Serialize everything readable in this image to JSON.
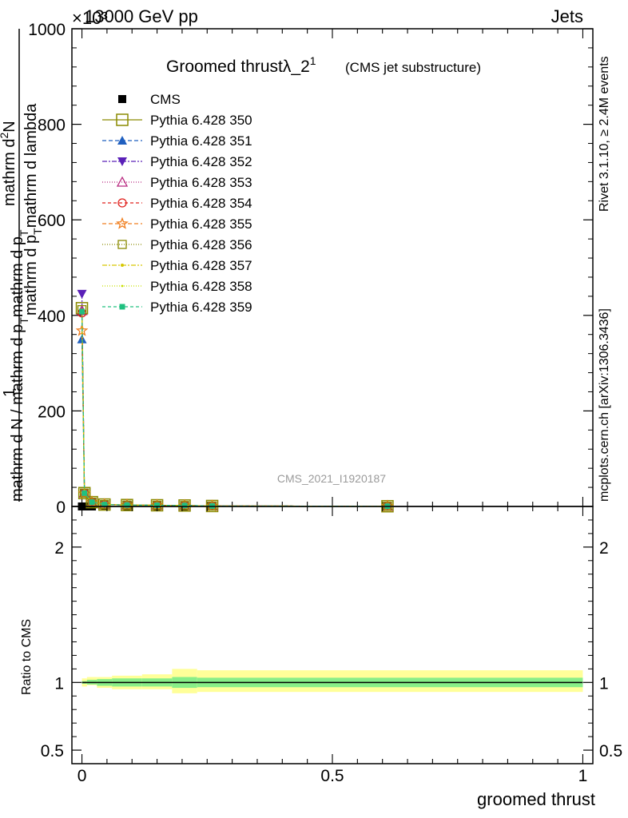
{
  "header": {
    "left": "13000 GeV pp",
    "right": "Jets",
    "exponent": "×10³"
  },
  "side_labels": {
    "rivet": "Rivet 3.1.10, ≥ 2.4M events",
    "mcplots": "mcplots.cern.ch [arXiv:1306.3436]"
  },
  "watermark": "CMS_2021_I1920187",
  "colors": {
    "cms": "#000000",
    "p350": "#8a8a00",
    "p351": "#1f5fbf",
    "p352": "#5a20b8",
    "p353": "#b8287f",
    "p354": "#e0201c",
    "p355": "#f07f20",
    "p356": "#8a8a00",
    "p357": "#d6c800",
    "p358": "#c8e000",
    "p359": "#20c080",
    "band_outer": "#ffff99",
    "band_inner": "#88ee88"
  },
  "chart_data": [
    {
      "type": "line",
      "title": "Groomed thrust λ_2¹",
      "title_main": "Groomed thrust",
      "title_lambda": "λ_2",
      "title_sup": "1",
      "subtitle": "(CMS jet substructure)",
      "ylabel_num": "1",
      "ylabel_den": "mathrm d N / mathrm d p_T mathrm d p_T mathrm d lambda",
      "ylabel_top": "mathrm d²N",
      "ylabel_bottom": "mathrm d N / mathrm d p_T mathrm d p_T mathrm d lambda",
      "ylabel_top_main": "mathrm d",
      "ylabel_top_sup": "2",
      "ylabel_top_tail": "N",
      "ylabel_mid": "mathrm d p",
      "ylabel_mid_sub": "T",
      "ylabel_mid_tail": "mathrm d lambda",
      "ylabel_low": "mathrm d N / mathrm d p",
      "ylabel_low_sub": "T",
      "ylabel_low_tail": "mathrm d p",
      "ylabel_low_sub2": "T",
      "xlabel": "groomed thrust",
      "ylim": [
        0,
        1000
      ],
      "xlim": [
        -0.02,
        1.02
      ],
      "yticks": [
        0,
        200,
        400,
        600,
        800,
        1000
      ],
      "ytick_labels": [
        "0",
        "200",
        "400",
        "600",
        "800",
        "1000"
      ],
      "grid": false,
      "legend_position": "top-left",
      "x": [
        0.0,
        0.005,
        0.02,
        0.045,
        0.09,
        0.15,
        0.205,
        0.26,
        0.61
      ],
      "series": [
        {
          "name": "CMS",
          "key": "cms",
          "marker": "square-filled",
          "dash": "none",
          "values": [
            0,
            0,
            0,
            0,
            0,
            0,
            0,
            0,
            0
          ]
        },
        {
          "name": "Pythia 6.428 350",
          "key": "p350",
          "marker": "square-open-large",
          "dash": "solid",
          "values": [
            415,
            28,
            9,
            4,
            3,
            2.5,
            2,
            1,
            0.5
          ]
        },
        {
          "name": "Pythia 6.428 351",
          "key": "p351",
          "marker": "triangle-up-filled",
          "dash": "5,3",
          "values": [
            350,
            27,
            9,
            4,
            3,
            2.5,
            2,
            1,
            0.5
          ]
        },
        {
          "name": "Pythia 6.428 352",
          "key": "p352",
          "marker": "triangle-down-filled",
          "dash": "6,2,2,2",
          "values": [
            445,
            29,
            9,
            4,
            3,
            2.5,
            2,
            1,
            0.5
          ]
        },
        {
          "name": "Pythia 6.428 353",
          "key": "p353",
          "marker": "triangle-up-open",
          "dash": "1,2",
          "values": [
            410,
            28,
            9,
            4,
            3,
            2.5,
            2,
            1,
            0.5
          ]
        },
        {
          "name": "Pythia 6.428 354",
          "key": "p354",
          "marker": "circle-open",
          "dash": "4,3",
          "values": [
            405,
            28,
            9,
            4,
            3,
            2.5,
            2,
            1,
            0.5
          ]
        },
        {
          "name": "Pythia 6.428 355",
          "key": "p355",
          "marker": "star-open",
          "dash": "5,3",
          "values": [
            368,
            27,
            9,
            4,
            3,
            2.5,
            2,
            1,
            0.5
          ]
        },
        {
          "name": "Pythia 6.428 356",
          "key": "p356",
          "marker": "square-open",
          "dash": "1,2",
          "values": [
            412,
            28,
            9,
            4,
            3,
            2.5,
            2,
            1,
            0.5
          ]
        },
        {
          "name": "Pythia 6.428 357",
          "key": "p357",
          "marker": "dot",
          "dash": "6,2,2,2",
          "values": [
            410,
            28,
            9,
            4,
            3,
            2.5,
            2,
            1,
            0.5
          ]
        },
        {
          "name": "Pythia 6.428 358",
          "key": "p358",
          "marker": "dot-small",
          "dash": "1,2",
          "values": [
            410,
            28,
            9,
            4,
            3,
            2.5,
            2,
            1,
            0.5
          ]
        },
        {
          "name": "Pythia 6.428 359",
          "key": "p359",
          "marker": "square-filled-small",
          "dash": "4,3",
          "values": [
            408,
            28,
            9,
            4,
            3,
            2.5,
            2,
            1,
            0.5
          ]
        }
      ]
    },
    {
      "type": "area",
      "ylabel": "Ratio to CMS",
      "xlabel": "groomed thrust",
      "ylim": [
        0.4,
        2.3
      ],
      "xlim": [
        -0.02,
        1.02
      ],
      "xticks": [
        0,
        0.5,
        1
      ],
      "xtick_labels": [
        "0",
        "0.5",
        "1"
      ],
      "yticks": [
        0.5,
        1,
        2
      ],
      "ytick_labels": [
        "0.5",
        "1",
        "2"
      ],
      "reference_line": 1,
      "bands": {
        "edges": [
          0.0,
          0.01,
          0.03,
          0.06,
          0.12,
          0.18,
          0.23,
          1.0
        ],
        "outer_lo": [
          0.97,
          0.98,
          0.96,
          0.95,
          0.95,
          0.92,
          0.93,
          0.93
        ],
        "outer_hi": [
          1.03,
          1.04,
          1.04,
          1.05,
          1.06,
          1.1,
          1.09,
          1.09
        ],
        "inner_lo": [
          0.99,
          0.985,
          0.975,
          0.97,
          0.97,
          0.96,
          0.965,
          0.965
        ],
        "inner_hi": [
          1.01,
          1.02,
          1.025,
          1.03,
          1.03,
          1.04,
          1.035,
          1.035
        ]
      }
    }
  ]
}
